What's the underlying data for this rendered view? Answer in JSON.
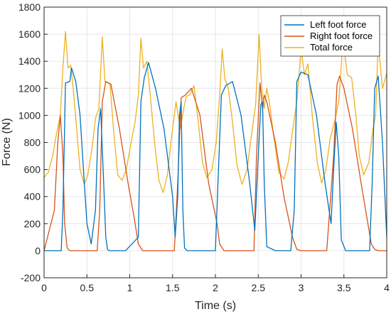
{
  "colors": {
    "left": "#0072BD",
    "right": "#D95319",
    "total": "#EDB120",
    "grid": "#e6e6e6",
    "axis": "#262626"
  },
  "chart_data": {
    "type": "line",
    "title": "",
    "xlabel": "Time (s)",
    "ylabel": "Force (N)",
    "xlim": [
      0,
      4
    ],
    "ylim": [
      -200,
      1800
    ],
    "xticks": [
      "0",
      "0.5",
      "1",
      "1.5",
      "2",
      "2.5",
      "3",
      "3.5",
      "4"
    ],
    "yticks": [
      "-200",
      "0",
      "200",
      "400",
      "600",
      "800",
      "1000",
      "1200",
      "1400",
      "1600",
      "1800"
    ],
    "grid": true,
    "legend_position": "top-right",
    "series": [
      {
        "name": "Left foot force",
        "x": [
          0,
          0.2,
          0.22,
          0.25,
          0.3,
          0.32,
          0.37,
          0.42,
          0.47,
          0.5,
          0.55,
          0.6,
          0.63,
          0.66,
          0.69,
          0.72,
          0.74,
          0.76,
          0.8,
          0.95,
          1.1,
          1.13,
          1.17,
          1.22,
          1.3,
          1.4,
          1.5,
          1.53,
          1.56,
          1.58,
          1.6,
          1.62,
          1.64,
          1.67,
          1.8,
          2.0,
          2.03,
          2.07,
          2.12,
          2.2,
          2.3,
          2.4,
          2.46,
          2.5,
          2.53,
          2.55,
          2.57,
          2.6,
          2.7,
          2.88,
          2.92,
          2.95,
          3.0,
          3.08,
          3.18,
          3.28,
          3.35,
          3.38,
          3.41,
          3.44,
          3.47,
          3.52,
          3.7,
          3.8,
          3.83,
          3.86,
          3.9,
          3.95,
          4.0
        ],
        "y": [
          0,
          0,
          300,
          1240,
          1250,
          1350,
          1250,
          1000,
          500,
          200,
          50,
          300,
          900,
          1050,
          600,
          100,
          10,
          0,
          0,
          0,
          100,
          1100,
          1280,
          1390,
          1200,
          900,
          400,
          100,
          400,
          1000,
          1100,
          300,
          20,
          0,
          0,
          0,
          500,
          1150,
          1220,
          1250,
          1000,
          500,
          150,
          700,
          1080,
          1100,
          500,
          30,
          0,
          0,
          300,
          1250,
          1320,
          1300,
          1000,
          500,
          200,
          600,
          950,
          700,
          80,
          0,
          0,
          0,
          500,
          1200,
          1290,
          800,
          100
        ]
      },
      {
        "name": "Right foot force",
        "x": [
          0,
          0.12,
          0.16,
          0.19,
          0.22,
          0.24,
          0.27,
          0.3,
          0.45,
          0.62,
          0.65,
          0.68,
          0.72,
          0.78,
          0.88,
          0.98,
          1.05,
          1.1,
          1.15,
          1.3,
          1.52,
          1.56,
          1.6,
          1.65,
          1.72,
          1.82,
          1.92,
          2.02,
          2.05,
          2.1,
          2.2,
          2.45,
          2.48,
          2.52,
          2.55,
          2.57,
          2.6,
          2.7,
          2.8,
          2.9,
          2.95,
          3.0,
          3.3,
          3.38,
          3.42,
          3.45,
          3.5,
          3.6,
          3.7,
          3.78,
          3.82,
          3.86,
          3.9,
          4.0
        ],
        "y": [
          0,
          300,
          800,
          1000,
          700,
          200,
          20,
          0,
          0,
          0,
          300,
          1100,
          1250,
          1230,
          900,
          500,
          250,
          50,
          0,
          0,
          0,
          500,
          1130,
          1150,
          1200,
          1000,
          500,
          200,
          50,
          0,
          0,
          0,
          700,
          1240,
          1050,
          1150,
          1100,
          800,
          400,
          100,
          10,
          0,
          0,
          700,
          1230,
          1290,
          1200,
          900,
          500,
          200,
          50,
          10,
          0,
          0
        ]
      },
      {
        "name": "Total force",
        "x": [
          0,
          0.05,
          0.1,
          0.15,
          0.19,
          0.22,
          0.25,
          0.28,
          0.31,
          0.34,
          0.38,
          0.42,
          0.47,
          0.51,
          0.56,
          0.6,
          0.64,
          0.68,
          0.71,
          0.74,
          0.77,
          0.81,
          0.86,
          0.91,
          0.96,
          1.01,
          1.06,
          1.1,
          1.13,
          1.16,
          1.2,
          1.24,
          1.29,
          1.34,
          1.39,
          1.44,
          1.49,
          1.54,
          1.59,
          1.63,
          1.66,
          1.7,
          1.75,
          1.8,
          1.85,
          1.9,
          1.96,
          2.01,
          2.05,
          2.08,
          2.11,
          2.15,
          2.2,
          2.25,
          2.31,
          2.37,
          2.42,
          2.47,
          2.51,
          2.54,
          2.57,
          2.6,
          2.63,
          2.68,
          2.74,
          2.8,
          2.85,
          2.9,
          2.95,
          3.0,
          3.04,
          3.08,
          3.13,
          3.19,
          3.24,
          3.29,
          3.34,
          3.39,
          3.44,
          3.49,
          3.54,
          3.59,
          3.64,
          3.68,
          3.73,
          3.79,
          3.84,
          3.87,
          3.9,
          3.95,
          4.0
        ],
        "y": [
          540,
          580,
          700,
          880,
          1000,
          1350,
          1620,
          1350,
          1370,
          1200,
          900,
          600,
          490,
          560,
          760,
          980,
          1050,
          1580,
          1250,
          1240,
          1230,
          900,
          560,
          520,
          600,
          780,
          940,
          1150,
          1570,
          1350,
          1400,
          1150,
          800,
          520,
          430,
          560,
          850,
          1100,
          900,
          1050,
          1140,
          1150,
          1220,
          950,
          650,
          540,
          600,
          800,
          1150,
          1490,
          1270,
          1200,
          950,
          640,
          490,
          600,
          850,
          1080,
          1600,
          1200,
          1050,
          1200,
          1100,
          850,
          580,
          530,
          650,
          880,
          1100,
          1490,
          1300,
          1380,
          1000,
          650,
          500,
          600,
          830,
          950,
          1100,
          1560,
          1300,
          1280,
          1000,
          700,
          560,
          650,
          900,
          1000,
          1540,
          1200,
          1310
        ]
      }
    ]
  }
}
